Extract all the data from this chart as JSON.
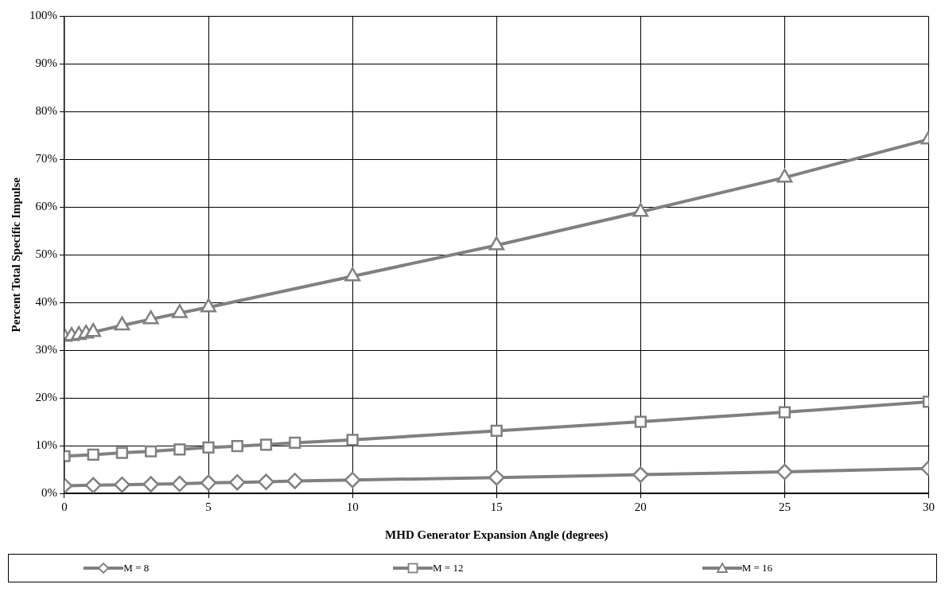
{
  "chart_data": {
    "type": "line",
    "xlabel": "MHD Generator Expansion Angle (degrees)",
    "ylabel": "Percent Total Specific Impulse",
    "xlim": [
      0,
      30
    ],
    "xticks": [
      0,
      5,
      10,
      15,
      20,
      25,
      30
    ],
    "ylim": [
      0,
      100
    ],
    "yticks": [
      {
        "value": 0,
        "label": "0%"
      },
      {
        "value": 10,
        "label": "10%"
      },
      {
        "value": 20,
        "label": "20%"
      },
      {
        "value": 30,
        "label": "30%"
      },
      {
        "value": 40,
        "label": "40%"
      },
      {
        "value": 50,
        "label": "50%"
      },
      {
        "value": 60,
        "label": "60%"
      },
      {
        "value": 70,
        "label": "70%"
      },
      {
        "value": 80,
        "label": "80%"
      },
      {
        "value": 90,
        "label": "90%"
      },
      {
        "value": 100,
        "label": "100%"
      }
    ],
    "grid": true,
    "legend": "bottom",
    "line_style": "solid",
    "series": [
      {
        "name": "M = 8",
        "color": "#808080",
        "marker": "diamond",
        "x": [
          0,
          1,
          2,
          3,
          4,
          5,
          6,
          7,
          8,
          10,
          15,
          20,
          25,
          30
        ],
        "values": [
          1.6,
          1.7,
          1.8,
          1.9,
          2.0,
          2.2,
          2.3,
          2.4,
          2.6,
          2.8,
          3.3,
          3.9,
          4.5,
          5.2
        ]
      },
      {
        "name": "M = 12",
        "color": "#808080",
        "marker": "square",
        "x": [
          0,
          1,
          2,
          3,
          4,
          5,
          6,
          7,
          8,
          10,
          15,
          20,
          25,
          30
        ],
        "values": [
          7.8,
          8.1,
          8.5,
          8.8,
          9.2,
          9.6,
          9.9,
          10.2,
          10.6,
          11.2,
          13.1,
          15.0,
          17.0,
          19.2
        ]
      },
      {
        "name": "M = 16",
        "color": "#808080",
        "marker": "triangle",
        "x": [
          0,
          0.25,
          0.5,
          0.75,
          1,
          2,
          3,
          4,
          5,
          10,
          15,
          20,
          25,
          30
        ],
        "values": [
          32.8,
          33.0,
          33.2,
          33.5,
          33.8,
          35.2,
          36.5,
          37.8,
          39.0,
          45.5,
          52.0,
          59.0,
          66.2,
          74.2
        ]
      }
    ]
  }
}
